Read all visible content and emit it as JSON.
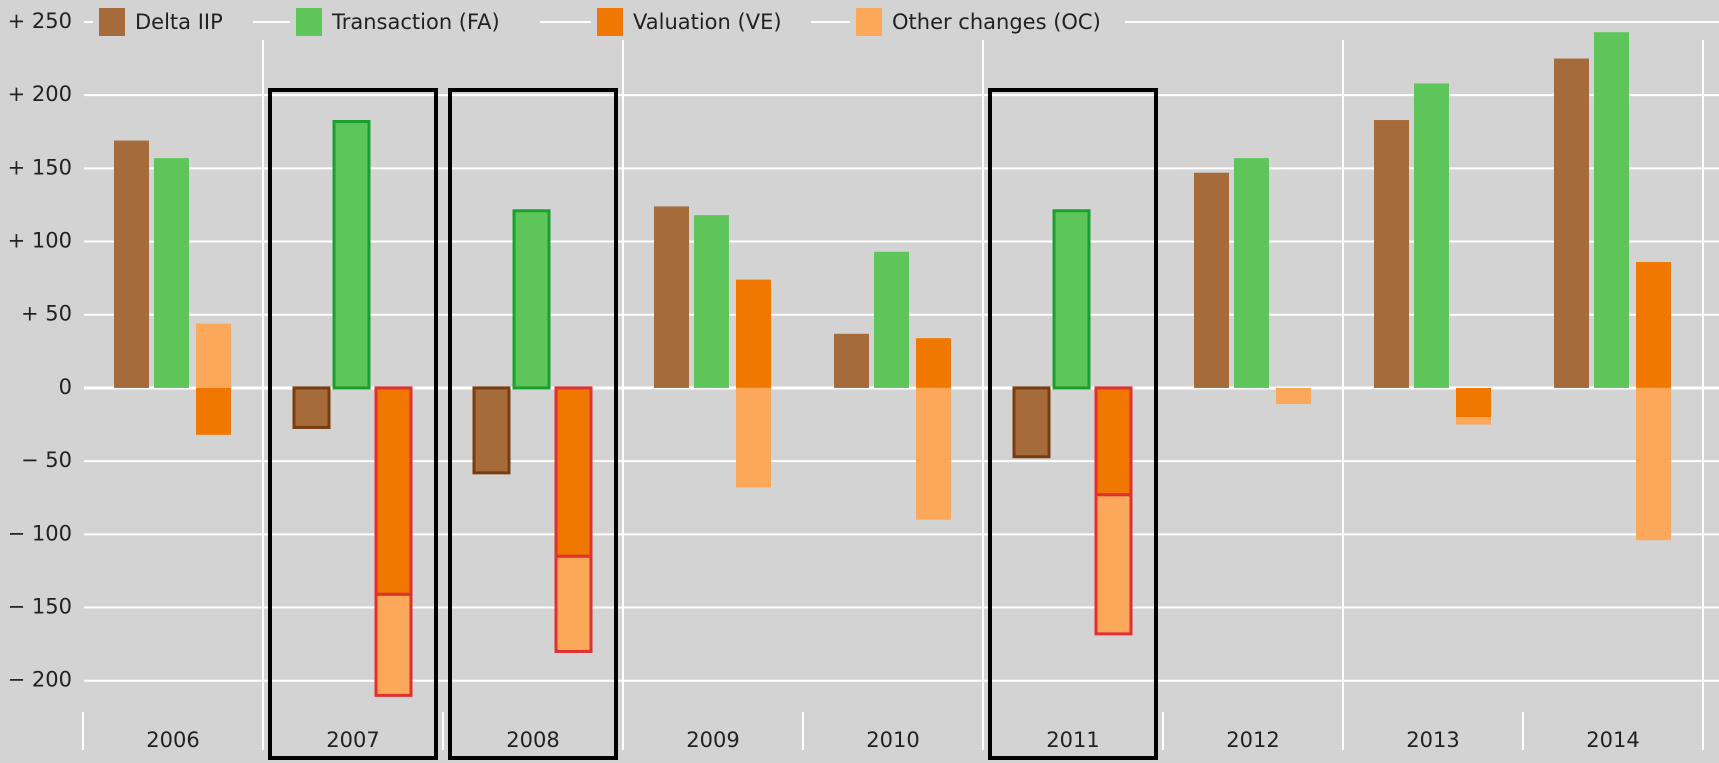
{
  "chart_data": {
    "type": "bar",
    "categories": [
      "2006",
      "2007",
      "2008",
      "2009",
      "2010",
      "2011",
      "2012",
      "2013",
      "2014"
    ],
    "series": [
      {
        "name": "Delta IIP",
        "color": "#a56b3a",
        "highlight_color": "#7a3d10",
        "values": [
          169,
          -27,
          -58,
          124,
          37,
          -47,
          147,
          183,
          225
        ]
      },
      {
        "name": "Transaction (FA)",
        "color": "#5ec55a",
        "highlight_color": "#1aa030",
        "values": [
          157,
          182,
          121,
          118,
          93,
          121,
          157,
          208,
          243
        ]
      },
      {
        "name": "Valuation (VE)",
        "color": "#f07800",
        "highlight_color": "#e03030",
        "values": [
          -32,
          -141,
          -115,
          74,
          34,
          -73,
          0,
          -20,
          86
        ]
      },
      {
        "name": "Other changes (OC)",
        "color": "#fca85a",
        "highlight_color": "#e03030",
        "values": [
          44,
          -69,
          -65,
          -68,
          -90,
          -95,
          -11,
          -5,
          -104
        ]
      }
    ],
    "stacked_series": [
      2,
      3
    ],
    "highlighted_categories": [
      "2007",
      "2008",
      "2011"
    ],
    "ylim": [
      -220,
      265
    ],
    "yticks": [
      {
        "value": -200,
        "label": "− 200"
      },
      {
        "value": -150,
        "label": "− 150"
      },
      {
        "value": -100,
        "label": "− 100"
      },
      {
        "value": -50,
        "label": "−  50"
      },
      0,
      {
        "value": 50,
        "label": "+  50"
      },
      {
        "value": 100,
        "label": "+ 100"
      },
      {
        "value": 150,
        "label": "+ 150"
      },
      {
        "value": 200,
        "label": "+ 200"
      },
      {
        "value": 250,
        "label": "+ 250"
      }
    ],
    "grid": true
  }
}
